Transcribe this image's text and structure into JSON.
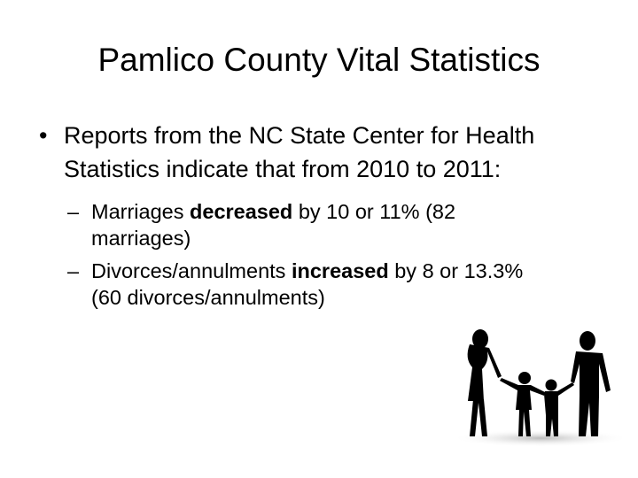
{
  "slide": {
    "title": "Pamlico County Vital Statistics",
    "bullets": [
      {
        "marker": "•",
        "text": "Reports from the NC State Center for Health Statistics indicate that from 2010 to 2011:",
        "sub_bullets": [
          {
            "marker": "–",
            "segments": [
              {
                "text": "Marriages "
              },
              {
                "text": "decreased",
                "bold": true
              },
              {
                "text": " by 10 or 11% (82 marriages)"
              }
            ]
          },
          {
            "marker": "–",
            "segments": [
              {
                "text": "Divorces/annulments "
              },
              {
                "text": "increased",
                "bold": true
              },
              {
                "text": " by 8 or 13.3% (60 divorces/annulments)"
              }
            ]
          }
        ]
      }
    ]
  }
}
